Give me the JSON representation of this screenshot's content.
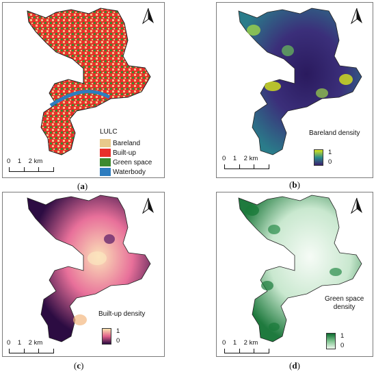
{
  "panels": {
    "a": {
      "caption_open": "(",
      "caption_letter": "a",
      "caption_close": ")",
      "legend_title": "LULC",
      "legend": [
        {
          "label": "Bareland",
          "color": "#e8c98b"
        },
        {
          "label": "Built-up",
          "color": "#e8302a"
        },
        {
          "label": "Green space",
          "color": "#3c8a2e"
        },
        {
          "label": "Waterbody",
          "color": "#2e7dbf"
        }
      ],
      "scale": "0    1    2 km"
    },
    "b": {
      "caption_open": "(",
      "caption_letter": "b",
      "caption_close": ")",
      "density_title": "Bareland density",
      "ramp_max": "1",
      "ramp_min": "0",
      "ramp_colors": [
        "#d7e61c",
        "#2a8c8c",
        "#3b1f6e"
      ],
      "scale": "0    1    2 km"
    },
    "c": {
      "caption_open": "(",
      "caption_letter": "c",
      "caption_close": ")",
      "density_title": "Built-up density",
      "ramp_max": "1",
      "ramp_min": "0",
      "ramp_colors": [
        "#fbe5b0",
        "#e0608a",
        "#2a0b3f"
      ],
      "scale": "0    1    2 km"
    },
    "d": {
      "caption_open": "(",
      "caption_letter": "d",
      "caption_close": ")",
      "density_title_line1": "Green space",
      "density_title_line2": "density",
      "ramp_max": "1",
      "ramp_min": "0",
      "ramp_colors": [
        "#0b6b2e",
        "#7fc48f",
        "#eef8ee"
      ],
      "scale": "0    1    2 km"
    }
  },
  "icons": {
    "north_arrow": "north-arrow-icon"
  }
}
